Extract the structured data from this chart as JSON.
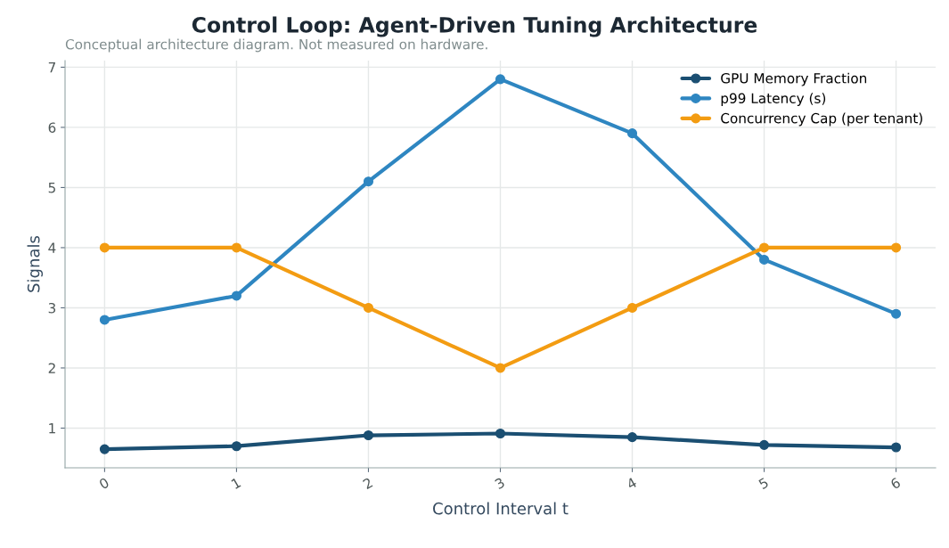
{
  "chart_data": {
    "type": "line",
    "title": "Control Loop: Agent-Driven Tuning Architecture",
    "subtitle": "Conceptual architecture diagram. Not measured on hardware.",
    "xlabel": "Control Interval t",
    "ylabel": "Signals",
    "x": [
      0,
      1,
      2,
      3,
      4,
      5,
      6
    ],
    "series": [
      {
        "name": "GPU Memory Fraction",
        "color": "#1b4f72",
        "values": [
          0.65,
          0.7,
          0.88,
          0.91,
          0.85,
          0.72,
          0.68
        ]
      },
      {
        "name": "p99 Latency (s)",
        "color": "#2e86c1",
        "values": [
          2.8,
          3.2,
          5.1,
          6.8,
          5.9,
          3.8,
          2.9
        ]
      },
      {
        "name": "Concurrency Cap (per tenant)",
        "color": "#f39c12",
        "values": [
          4,
          4,
          3,
          2,
          3,
          4,
          4
        ]
      }
    ],
    "xlim": [
      -0.3,
      6.3
    ],
    "ylim": [
      0.34,
      7.11
    ],
    "xticks": [
      0,
      1,
      2,
      3,
      4,
      5,
      6
    ],
    "yticks": [
      1,
      2,
      3,
      4,
      5,
      6,
      7
    ],
    "grid": true,
    "legend": "top right",
    "marker": "circle",
    "line_style": "solid"
  }
}
